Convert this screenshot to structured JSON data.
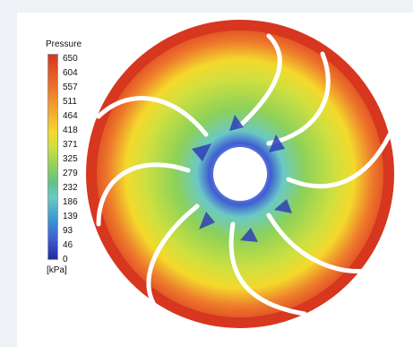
{
  "legend": {
    "title": "Pressure",
    "unit": "[kPa]",
    "ticks": [
      "650",
      "604",
      "557",
      "511",
      "464",
      "418",
      "371",
      "325",
      "279",
      "232",
      "186",
      "139",
      "93",
      "46",
      "0"
    ]
  },
  "colors": {
    "outer": "#d7361f",
    "orange": "#ee7a2c",
    "yellow": "#f4d92c",
    "green": "#8cd15a",
    "cyan": "#6ac9c5",
    "blue": "#3f5ed2",
    "hub": "#ffffff"
  }
}
